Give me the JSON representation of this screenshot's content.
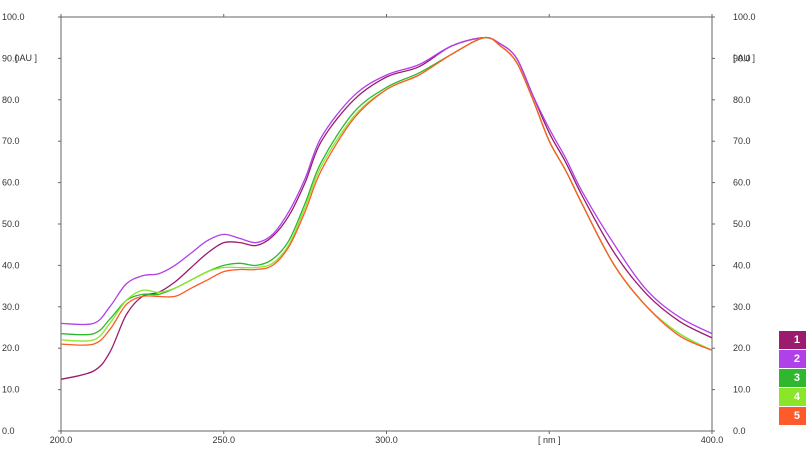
{
  "chart_data": {
    "type": "line",
    "xlabel": "[ nm ]",
    "ylabel_left": "[ AU ]",
    "ylabel_right": "[ AU ]",
    "xlim": [
      200,
      400
    ],
    "ylim": [
      0,
      100
    ],
    "x_ticks": [
      "200.0",
      "250.0",
      "300.0",
      "400.0"
    ],
    "y_ticks": [
      "0.0",
      "10.0",
      "20.0",
      "30.0",
      "40.0",
      "50.0",
      "60.0",
      "70.0",
      "80.0",
      "90.0",
      "100.0"
    ],
    "grid": false,
    "legend_position": "bottom-right",
    "x": [
      200,
      210,
      215,
      220,
      225,
      230,
      235,
      240,
      245,
      250,
      255,
      260,
      265,
      270,
      275,
      280,
      290,
      300,
      310,
      320,
      330,
      335,
      340,
      345,
      350,
      355,
      360,
      370,
      380,
      390,
      400
    ],
    "series": [
      {
        "name": "1",
        "color": "#9b1b6e",
        "values": [
          12.5,
          14.5,
          19,
          28,
          32.5,
          33.5,
          36,
          39.5,
          43,
          45.5,
          45.5,
          44.8,
          47,
          52,
          60,
          70,
          80,
          85.5,
          88,
          93,
          95,
          93.5,
          90,
          81,
          72,
          65,
          57,
          43,
          33,
          26.5,
          22.5
        ]
      },
      {
        "name": "2",
        "color": "#b040e8",
        "values": [
          26,
          26,
          30,
          35.5,
          37.5,
          38,
          40,
          43,
          46,
          47.5,
          46.5,
          45.5,
          47.5,
          53,
          61,
          71,
          81,
          86,
          88.5,
          93,
          95,
          93.5,
          90,
          81,
          73,
          66,
          58,
          45,
          34,
          27.5,
          23.5
        ]
      },
      {
        "name": "3",
        "color": "#2fb82f",
        "values": [
          23.5,
          23.5,
          27,
          31.5,
          33,
          33,
          34.5,
          36.5,
          38.5,
          40,
          40.5,
          40,
          41.5,
          46,
          55,
          65,
          77,
          83,
          86.5,
          91,
          95,
          93,
          89,
          80,
          70,
          63,
          55,
          40,
          30,
          23.5,
          19.5
        ]
      },
      {
        "name": "4",
        "color": "#8be62a",
        "values": [
          22,
          22,
          26,
          31.5,
          34,
          33.5,
          34.5,
          36.5,
          38.5,
          39.5,
          39.5,
          39.5,
          40.5,
          45,
          54,
          64,
          76,
          82.5,
          86,
          91,
          95,
          93,
          89,
          80,
          70,
          63,
          55,
          40,
          30,
          23.5,
          19.5
        ]
      },
      {
        "name": "5",
        "color": "#ff5a2a",
        "values": [
          21,
          21,
          24.5,
          30.5,
          32.5,
          32.5,
          32.5,
          34.5,
          36.5,
          38.5,
          39,
          39,
          40,
          44.5,
          53,
          63,
          75.5,
          82.5,
          86,
          91,
          95,
          93,
          89,
          80,
          70,
          63,
          55,
          40,
          30,
          23,
          19.5
        ]
      }
    ]
  }
}
